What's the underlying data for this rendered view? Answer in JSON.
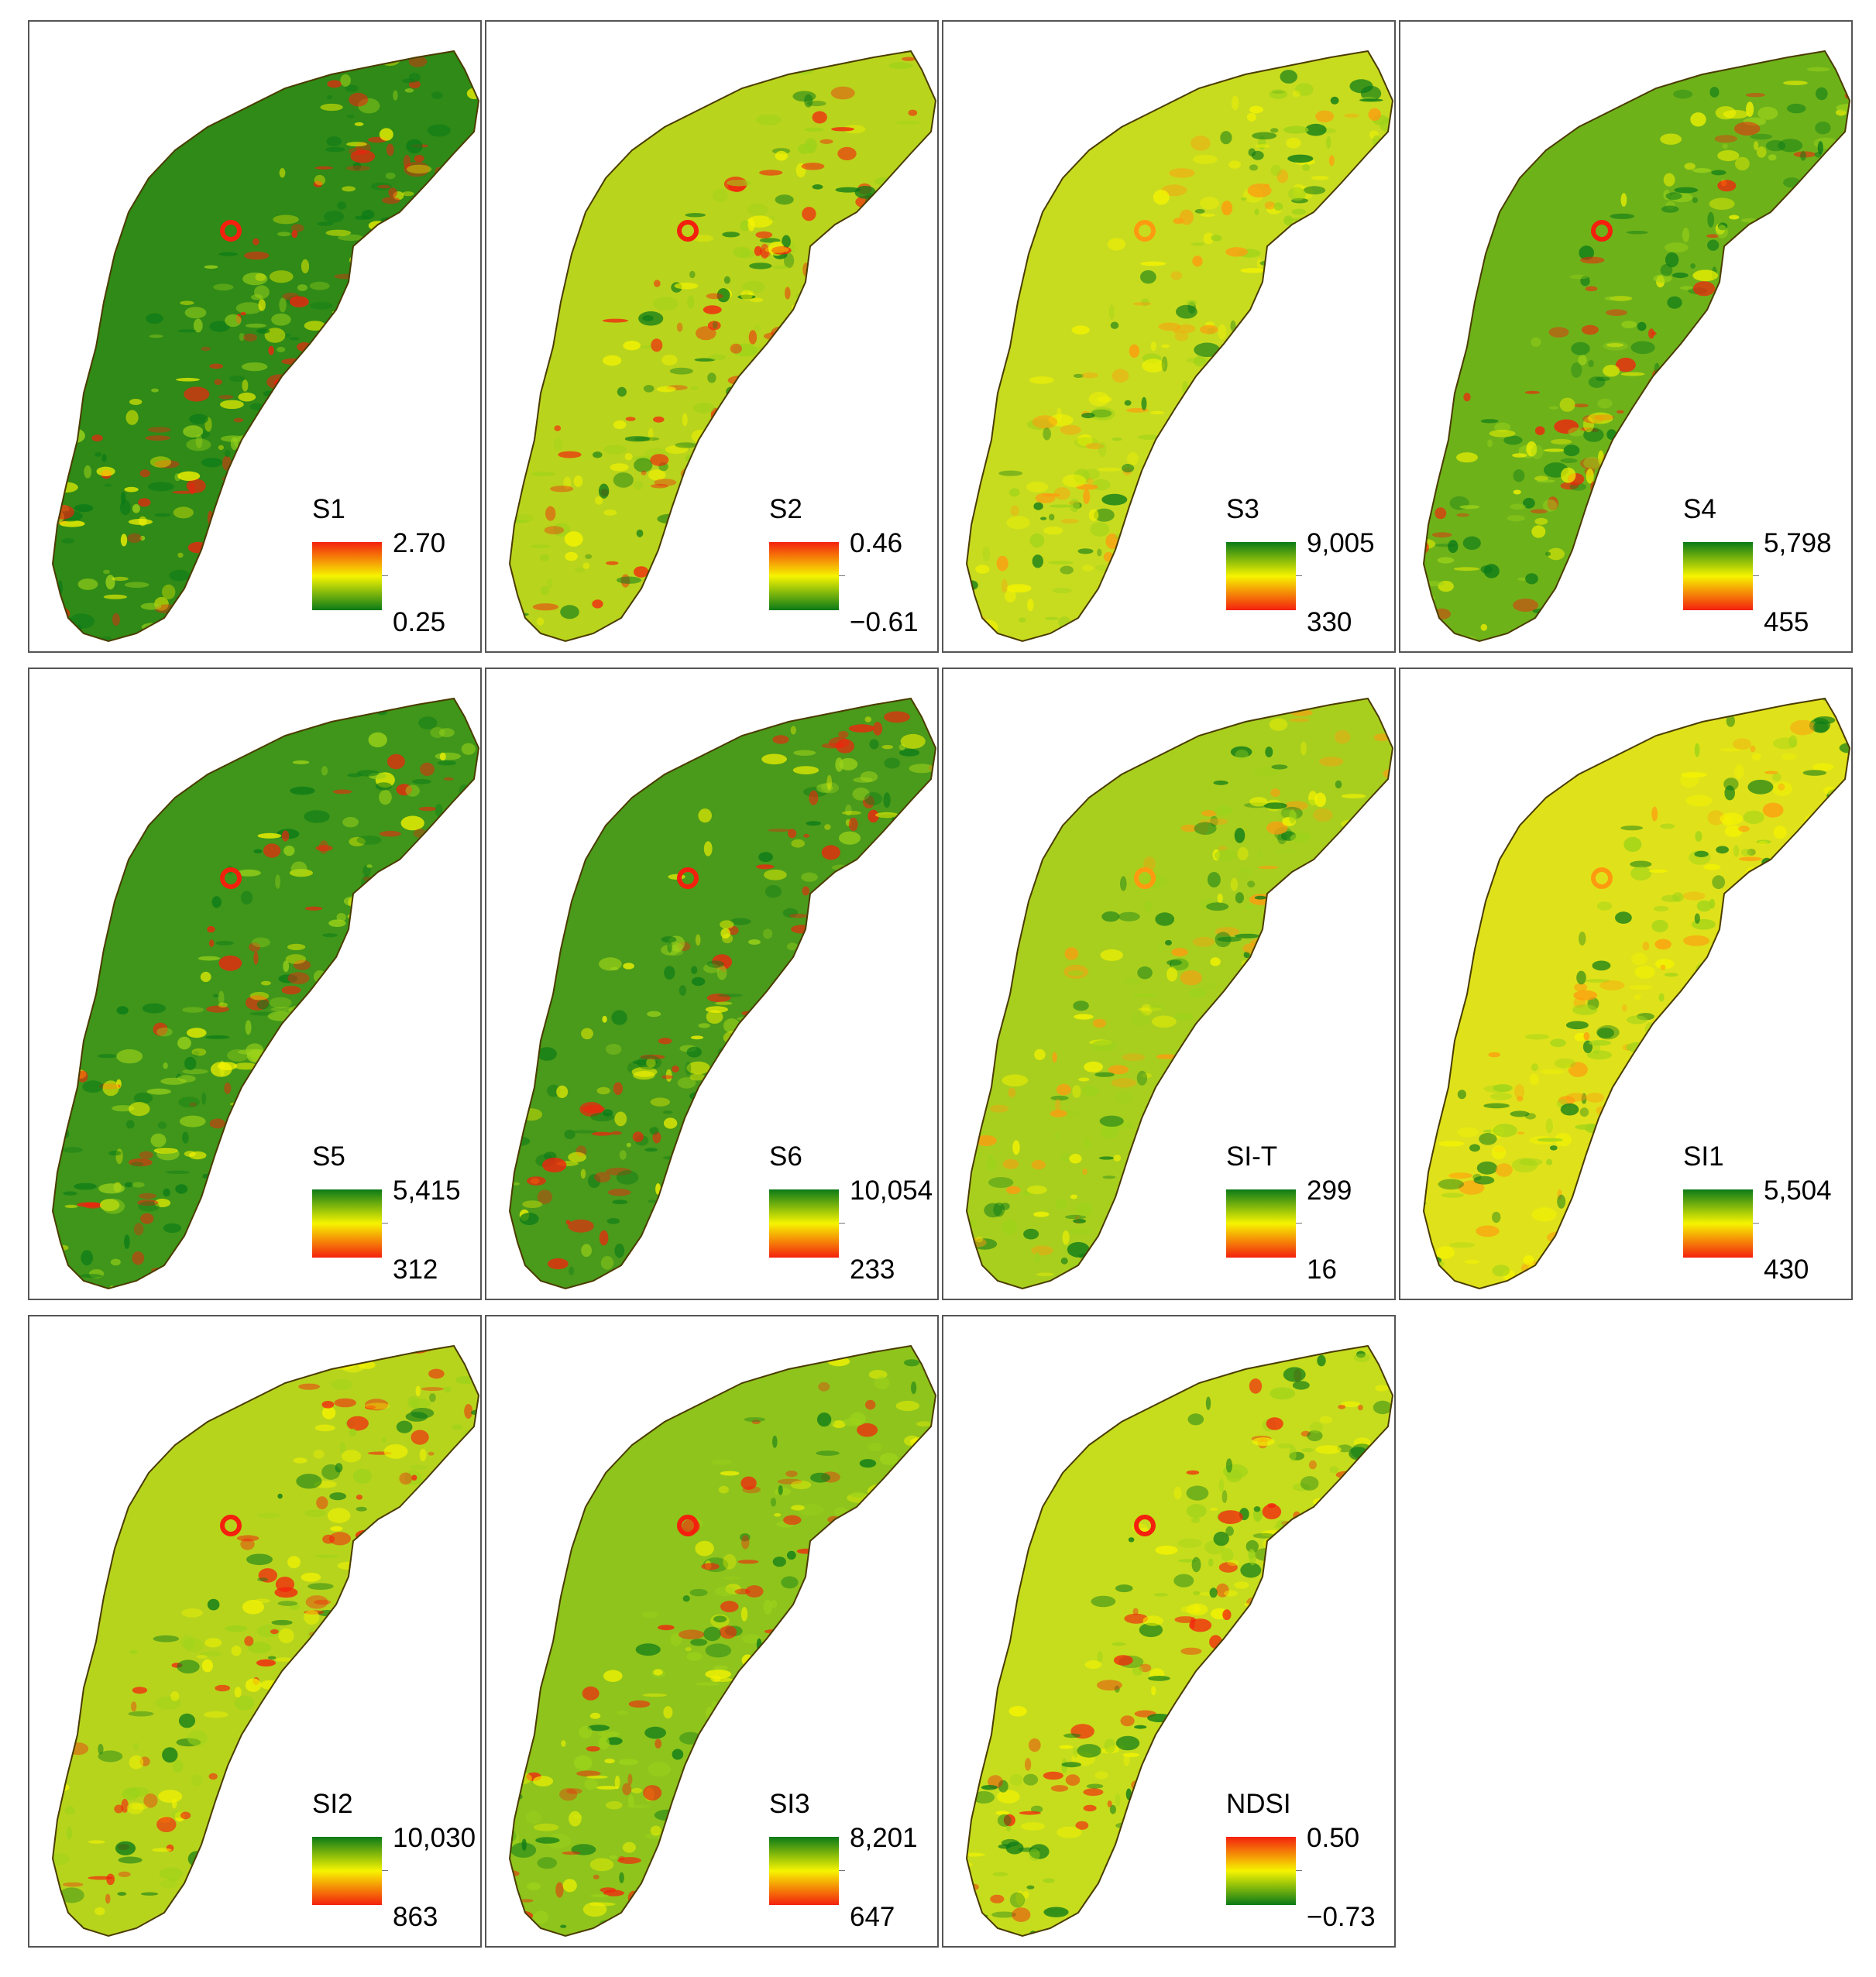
{
  "colors": {
    "green": "#0a7a18",
    "yellow": "#f6f400",
    "red": "#f4200e",
    "orange": "#ff9a10",
    "light_green": "#9cd31a",
    "outline": "#4a3c00",
    "border": "#555555"
  },
  "panels": [
    {
      "id": "S1",
      "title": "S1",
      "max": "2.70",
      "min": "0.25",
      "high_color": "red",
      "base": "#2f8a17",
      "spots": "red"
    },
    {
      "id": "S2",
      "title": "S2",
      "max": "0.46",
      "min": "−0.61",
      "high_color": "red",
      "base": "#b9d41c",
      "spots": "red"
    },
    {
      "id": "S3",
      "title": "S3",
      "max": "9,005",
      "min": "330",
      "high_color": "green",
      "base": "#c8dc1f",
      "spots": "orange"
    },
    {
      "id": "S4",
      "title": "S4",
      "max": "5,798",
      "min": "455",
      "high_color": "green",
      "base": "#6eb21a",
      "spots": "red"
    },
    {
      "id": "S5",
      "title": "S5",
      "max": "5,415",
      "min": "312",
      "high_color": "green",
      "base": "#3f961a",
      "spots": "red"
    },
    {
      "id": "S6",
      "title": "S6",
      "max": "10,054",
      "min": "233",
      "high_color": "green",
      "base": "#4a9a1b",
      "spots": "red"
    },
    {
      "id": "SI-T",
      "title": "SI-T",
      "max": "299",
      "min": "16",
      "high_color": "green",
      "base": "#a9cf1e",
      "spots": "orange"
    },
    {
      "id": "SI1",
      "title": "SI1",
      "max": "5,504",
      "min": "430",
      "high_color": "green",
      "base": "#dfe21a",
      "spots": "orange"
    },
    {
      "id": "SI2",
      "title": "SI2",
      "max": "10,030",
      "min": "863",
      "high_color": "green",
      "base": "#b7d41d",
      "spots": "red"
    },
    {
      "id": "SI3",
      "title": "SI3",
      "max": "8,201",
      "min": "647",
      "high_color": "green",
      "base": "#8fc41c",
      "spots": "red"
    },
    {
      "id": "NDSI",
      "title": "NDSI",
      "max": "0.50",
      "min": "−0.73",
      "high_color": "red",
      "base": "#c6dd1d",
      "spots": "red"
    }
  ]
}
